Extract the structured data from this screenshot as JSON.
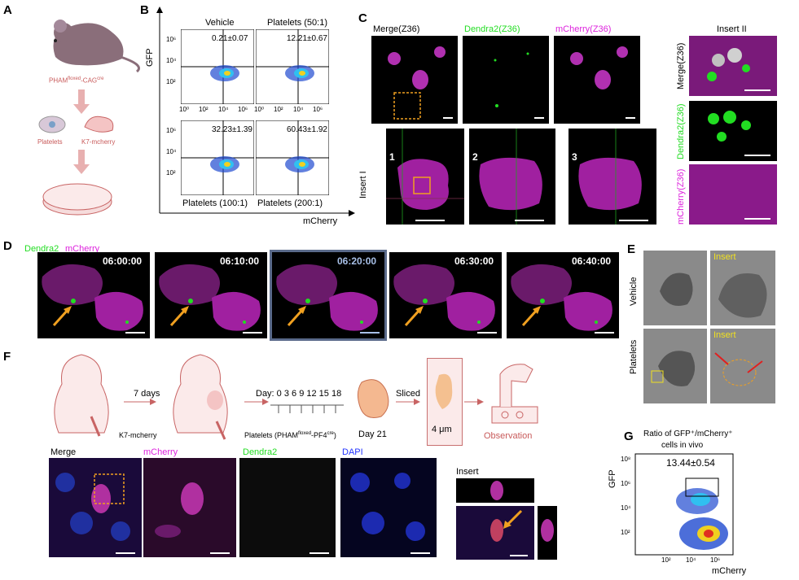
{
  "panels": {
    "A": "A",
    "B": "B",
    "C": "C",
    "D": "D",
    "E": "E",
    "F": "F",
    "G": "G"
  },
  "panelA": {
    "mouse_label_main": "PHAM",
    "mouse_label_sup1": "floxed",
    "mouse_label_mid": "-CAG",
    "mouse_label_sup2": "cre",
    "platelets": "Platelets",
    "k7": "K7-mcherry"
  },
  "panelB": {
    "yaxis": "GFP",
    "xaxis": "mCherry",
    "plots": [
      {
        "title": "Vehicle",
        "value": "0.21±0.07",
        "bottom": ""
      },
      {
        "title": "Platelets (50:1)",
        "value": "12.21±0.67",
        "bottom": ""
      },
      {
        "title": "",
        "value": "32.23±1.39",
        "bottom": "Platelets (100:1)"
      },
      {
        "title": "",
        "value": "60.43±1.92",
        "bottom": "Platelets (200:1)"
      }
    ],
    "yticks": [
      "10⁶",
      "10⁴",
      "10²"
    ],
    "xticks": [
      "10⁰",
      "10²",
      "10⁴",
      "10⁶"
    ]
  },
  "panelC": {
    "top_titles": [
      "Merge(Z36)",
      "Dendra2(Z36)",
      "mCherry(Z36)"
    ],
    "insert1": "Insert I",
    "insert2": "Insert II",
    "nums": [
      "1",
      "2",
      "3"
    ],
    "right_rows": [
      "Merge(Z36)",
      "Dendra2(Z36)",
      "mCherry(Z36)"
    ]
  },
  "panelD": {
    "legend_green": "Dendra2",
    "legend_magenta": "mCherry",
    "times": [
      "06:00:00",
      "06:10:00",
      "06:20:00",
      "06:30:00",
      "06:40:00"
    ]
  },
  "panelE": {
    "vehicle": "Vehicle",
    "platelets": "Platelets",
    "insert": "Insert"
  },
  "panelF": {
    "days7": "7 days",
    "k7": "K7-mcherry",
    "day_label": "Day: 0  3  6  9  12  15  18",
    "platelets_main": "Platelets (PHAM",
    "platelets_sup1": "floxed",
    "platelets_mid": "-PF4",
    "platelets_sup2": "cre",
    "platelets_end": ")",
    "day21": "Day 21",
    "sliced": "Sliced",
    "thick": "4 μm",
    "observation": "Observation",
    "row_titles": [
      "Merge",
      "mCherry",
      "Dendra2",
      "DAPI"
    ],
    "insert": "Insert"
  },
  "panelG": {
    "title_line1": "Ratio of GFP⁺/mCherry⁺",
    "title_line2": "cells in vivo",
    "value": "13.44±0.54",
    "yaxis": "GFP",
    "xaxis": "mCherry",
    "yticks": [
      "10⁸",
      "10⁶",
      "10⁴",
      "10²"
    ],
    "xticks": [
      "10²",
      "10⁴",
      "10⁶"
    ]
  },
  "colors": {
    "green": "#22dd22",
    "magenta": "#dd22dd",
    "blue": "#2233ff",
    "orange": "#f0a020",
    "arrow_red": "#c86464"
  }
}
